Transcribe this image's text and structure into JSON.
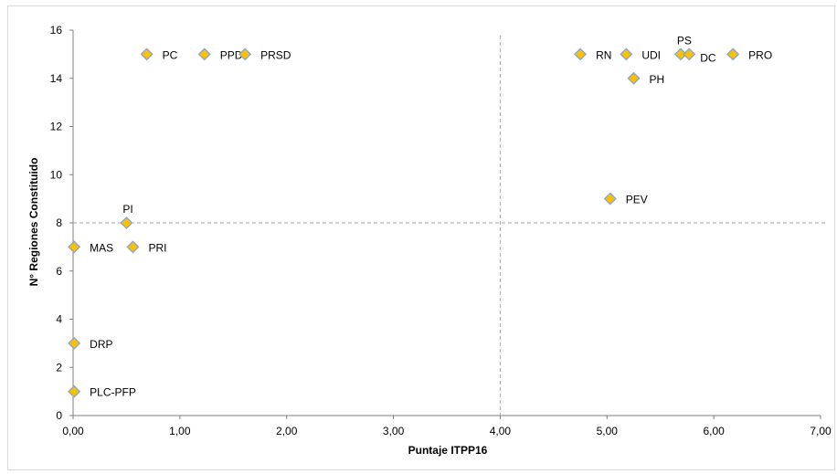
{
  "chart_data": {
    "type": "scatter",
    "xlabel": "Puntaje ITPP16",
    "ylabel": "N° Regiones Constituido",
    "xlim": [
      0,
      7
    ],
    "ylim": [
      0,
      16
    ],
    "x_ticks": [
      "0,00",
      "1,00",
      "2,00",
      "3,00",
      "4,00",
      "5,00",
      "6,00",
      "7,00"
    ],
    "y_ticks": [
      "0",
      "2",
      "4",
      "6",
      "8",
      "10",
      "12",
      "14",
      "16"
    ],
    "reference_lines": {
      "x": 4,
      "y": 8,
      "style": "dashed"
    },
    "grid": false,
    "legend": "none",
    "marker": "diamond",
    "colors": {
      "marker_fill": "#FFC000",
      "marker_edge": "#8EA9C1",
      "axis": "#7F7F7F",
      "ref_line": "#A6A6A6"
    },
    "points": [
      {
        "label": "PC",
        "x": 0.69,
        "y": 15,
        "label_pos": "right"
      },
      {
        "label": "PPD",
        "x": 1.23,
        "y": 15,
        "label_pos": "right"
      },
      {
        "label": "PRSD",
        "x": 1.61,
        "y": 15,
        "label_pos": "right"
      },
      {
        "label": "RN",
        "x": 4.75,
        "y": 15,
        "label_pos": "right"
      },
      {
        "label": "UDI",
        "x": 5.18,
        "y": 15,
        "label_pos": "right"
      },
      {
        "label": "PS",
        "x": 5.69,
        "y": 15,
        "label_pos": "above"
      },
      {
        "label": "DC",
        "x": 5.77,
        "y": 15,
        "label_pos": "below-right"
      },
      {
        "label": "PRO",
        "x": 6.18,
        "y": 15,
        "label_pos": "right"
      },
      {
        "label": "PH",
        "x": 5.25,
        "y": 14,
        "label_pos": "right"
      },
      {
        "label": "PEV",
        "x": 5.03,
        "y": 9,
        "label_pos": "right"
      },
      {
        "label": "PI",
        "x": 0.5,
        "y": 8,
        "label_pos": "above"
      },
      {
        "label": "MAS",
        "x": 0.01,
        "y": 7,
        "label_pos": "right"
      },
      {
        "label": "PRI",
        "x": 0.56,
        "y": 7,
        "label_pos": "right"
      },
      {
        "label": "DRP",
        "x": 0.01,
        "y": 3,
        "label_pos": "right"
      },
      {
        "label": "PLC-PFP",
        "x": 0.01,
        "y": 1,
        "label_pos": "right"
      }
    ]
  }
}
